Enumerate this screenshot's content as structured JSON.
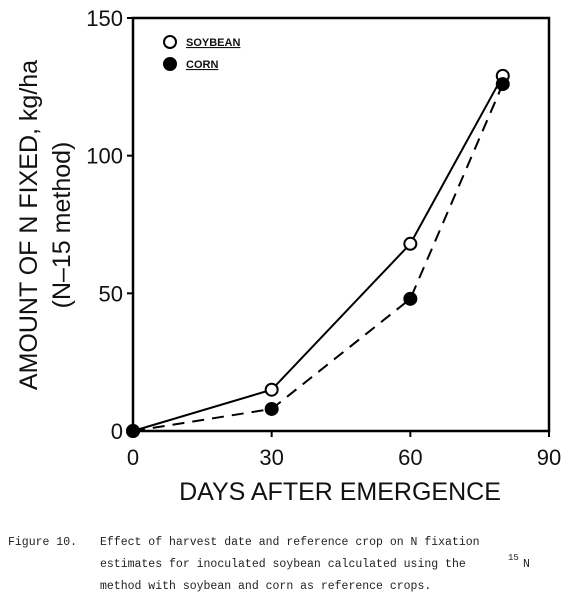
{
  "chart_data": {
    "type": "line",
    "ylabel": [
      "AMOUNT OF N FIXED, kg/ha",
      "(N–15 method)"
    ],
    "xlabel": "DAYS AFTER EMERGENCE",
    "xlim": [
      0,
      90
    ],
    "xticks": [
      0,
      30,
      60,
      90
    ],
    "ylim": [
      0,
      150
    ],
    "yticks": [
      0,
      50,
      100,
      150
    ],
    "legend": "upper left",
    "series": [
      {
        "name": "SOYBEAN",
        "color": "#000000",
        "marker": "open",
        "line_style": "solid",
        "x": [
          0,
          30,
          60,
          80
        ],
        "values": [
          0,
          15,
          68,
          129
        ]
      },
      {
        "name": "CORN",
        "color": "#000000",
        "marker": "filled",
        "line_style": "dashed",
        "x": [
          0,
          30,
          60,
          80
        ],
        "values": [
          0,
          8,
          48,
          126
        ]
      }
    ]
  },
  "caption": {
    "label": "Figure 10.",
    "line1": "Effect of harvest date and reference crop on N fixation",
    "line2": "estimates for inoculated soybean calculated using the",
    "superscript": "15",
    "line2_end": "N",
    "line3": "method with soybean and corn as reference crops."
  }
}
